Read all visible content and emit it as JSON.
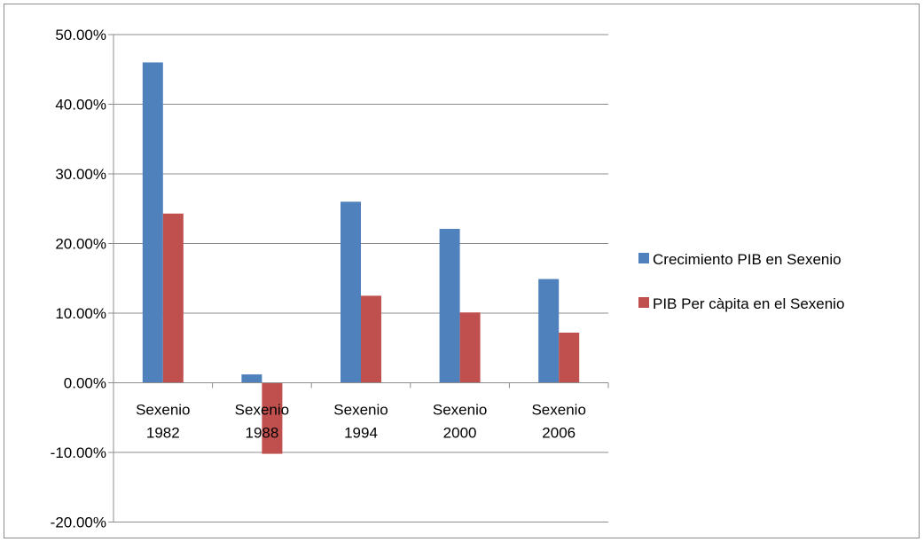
{
  "chart_data": {
    "type": "bar",
    "categories": [
      [
        "Sexenio",
        "1982"
      ],
      [
        "Sexenio",
        "1988"
      ],
      [
        "Sexenio",
        "1994"
      ],
      [
        "Sexenio",
        "2000"
      ],
      [
        "Sexenio",
        "2006"
      ]
    ],
    "series": [
      {
        "name": "Crecimiento PIB en Sexenio",
        "color": "#4f81bd",
        "values": [
          0.46,
          0.012,
          0.26,
          0.221,
          0.149
        ]
      },
      {
        "name": "PIB Per càpita  en el Sexenio",
        "color": "#c0504d",
        "values": [
          0.243,
          -0.102,
          0.125,
          0.101,
          0.072
        ]
      }
    ],
    "y_ticks": [
      {
        "value": 0.5,
        "label": "50.00%"
      },
      {
        "value": 0.4,
        "label": "40.00%"
      },
      {
        "value": 0.3,
        "label": "30.00%"
      },
      {
        "value": 0.2,
        "label": "20.00%"
      },
      {
        "value": 0.1,
        "label": "10.00%"
      },
      {
        "value": 0.0,
        "label": "0.00%"
      },
      {
        "value": -0.1,
        "label": "-10.00%"
      },
      {
        "value": -0.2,
        "label": "-20.00%"
      }
    ],
    "ylim": [
      -0.2,
      0.5
    ],
    "grid": true,
    "legend_position": "right",
    "title": "",
    "xlabel": "",
    "ylabel": ""
  }
}
